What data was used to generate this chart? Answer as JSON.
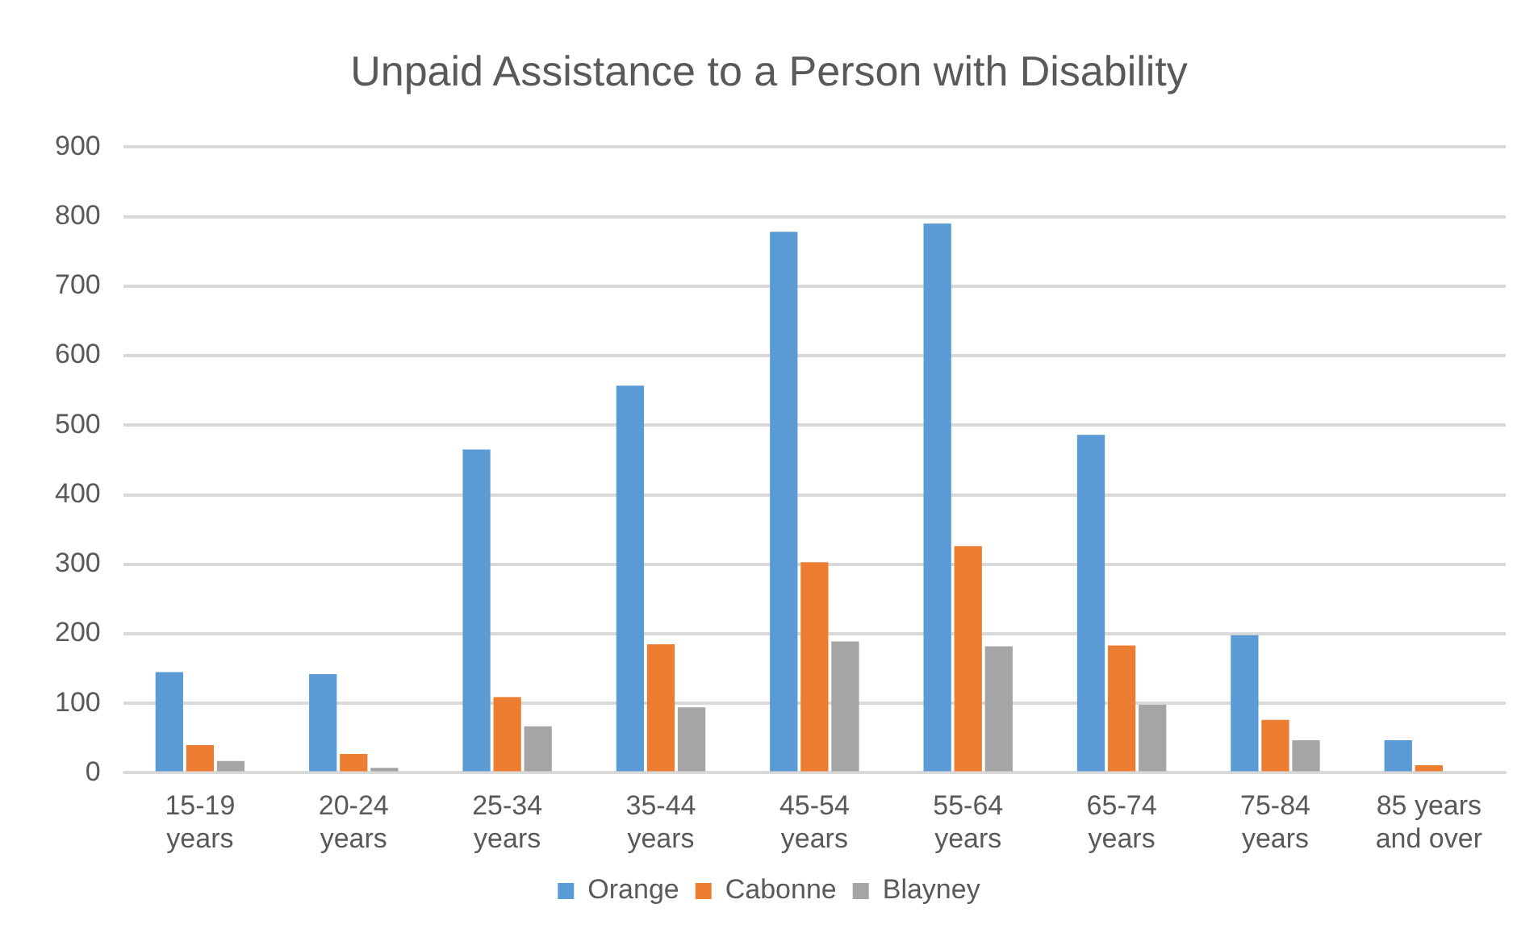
{
  "chart_data": {
    "type": "bar",
    "title": "Unpaid Assistance to a Person with Disability",
    "categories": [
      "15-19 years",
      "20-24 years",
      "25-34 years",
      "35-44 years",
      "45-54 years",
      "55-64 years",
      "65-74 years",
      "75-84 years",
      "85 years and over"
    ],
    "series": [
      {
        "name": "Orange",
        "color": "#5b9bd5",
        "values": [
          145,
          142,
          465,
          557,
          778,
          790,
          486,
          198,
          47
        ]
      },
      {
        "name": "Cabonne",
        "color": "#ed7d31",
        "values": [
          40,
          27,
          109,
          185,
          303,
          326,
          183,
          76,
          11
        ]
      },
      {
        "name": "Blayney",
        "color": "#a5a5a5",
        "values": [
          17,
          7,
          67,
          94,
          189,
          182,
          98,
          47,
          null
        ]
      }
    ],
    "ylim": [
      0,
      900
    ],
    "yticks": [
      0,
      100,
      200,
      300,
      400,
      500,
      600,
      700,
      800,
      900
    ],
    "grid": "y",
    "legend": "bottom"
  }
}
